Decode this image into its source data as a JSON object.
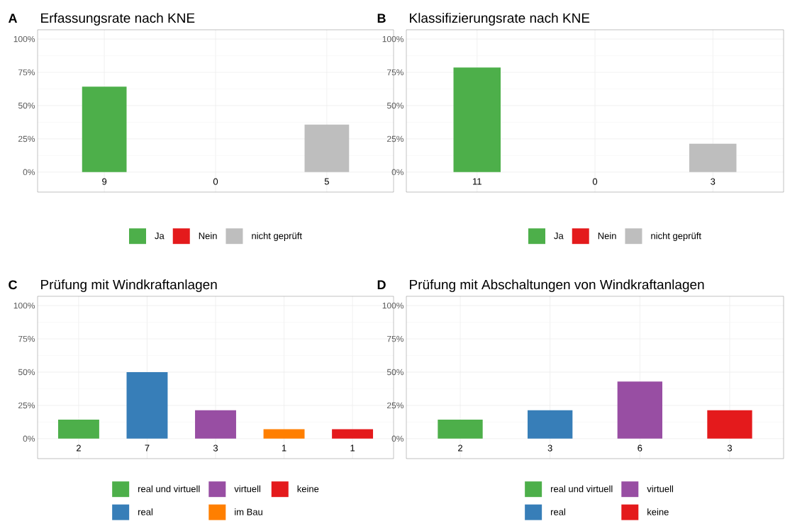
{
  "chart_data": [
    {
      "type": "bar",
      "title": "Erfassungsrate nach KNE",
      "annotations": [
        "A"
      ],
      "categories": [
        "9",
        "0",
        "5"
      ],
      "series": [
        {
          "name": "Ja",
          "color": "#4daf4a",
          "values": [
            64.3,
            null,
            null
          ]
        },
        {
          "name": "Nein",
          "color": "#e41a1c",
          "values": [
            null,
            0,
            null
          ]
        },
        {
          "name": "nicht geprüft",
          "color": "#bebebe",
          "values": [
            null,
            null,
            35.7
          ]
        }
      ],
      "ylim": [
        -15,
        107
      ],
      "yticks": [
        {
          "value": 0,
          "label": "0%"
        },
        {
          "value": 25,
          "label": "25%"
        },
        {
          "value": 50,
          "label": "50%"
        },
        {
          "value": 75,
          "label": "75%"
        },
        {
          "value": 100,
          "label": "100%"
        }
      ],
      "grid": true,
      "legend": "bottom"
    },
    {
      "type": "bar",
      "title": "Klassifizierungsrate nach KNE",
      "annotations": [
        "B"
      ],
      "categories": [
        "11",
        "0",
        "3"
      ],
      "series": [
        {
          "name": "Ja",
          "color": "#4daf4a",
          "values": [
            78.6,
            null,
            null
          ]
        },
        {
          "name": "Nein",
          "color": "#e41a1c",
          "values": [
            null,
            0,
            null
          ]
        },
        {
          "name": "nicht geprüft",
          "color": "#bebebe",
          "values": [
            null,
            null,
            21.4
          ]
        }
      ],
      "ylim": [
        -15,
        107
      ],
      "yticks": [
        {
          "value": 0,
          "label": "0%"
        },
        {
          "value": 25,
          "label": "25%"
        },
        {
          "value": 50,
          "label": "50%"
        },
        {
          "value": 75,
          "label": "75%"
        },
        {
          "value": 100,
          "label": "100%"
        }
      ],
      "grid": true,
      "legend": "bottom"
    },
    {
      "type": "bar",
      "title": "Prüfung mit Windkraftanlagen",
      "annotations": [
        "C"
      ],
      "categories": [
        "2",
        "7",
        "3",
        "1",
        "1"
      ],
      "series": [
        {
          "name": "real und virtuell",
          "color": "#4daf4a",
          "values": [
            14.3,
            null,
            null,
            null,
            null
          ]
        },
        {
          "name": "real",
          "color": "#377eb8",
          "values": [
            null,
            50,
            null,
            null,
            null
          ]
        },
        {
          "name": "virtuell",
          "color": "#984ea3",
          "values": [
            null,
            null,
            21.4,
            null,
            null
          ]
        },
        {
          "name": "im Bau",
          "color": "#ff7f00",
          "values": [
            null,
            null,
            null,
            7.1,
            null
          ]
        },
        {
          "name": "keine",
          "color": "#e41a1c",
          "values": [
            null,
            null,
            null,
            null,
            7.1
          ]
        }
      ],
      "ylim": [
        -15,
        107
      ],
      "yticks": [
        {
          "value": 0,
          "label": "0%"
        },
        {
          "value": 25,
          "label": "25%"
        },
        {
          "value": 50,
          "label": "50%"
        },
        {
          "value": 75,
          "label": "75%"
        },
        {
          "value": 100,
          "label": "100%"
        }
      ],
      "grid": true,
      "legend": "bottom"
    },
    {
      "type": "bar",
      "title": "Prüfung mit Abschaltungen von Windkraftanlagen",
      "annotations": [
        "D"
      ],
      "categories": [
        "2",
        "3",
        "6",
        "3"
      ],
      "series": [
        {
          "name": "real und virtuell",
          "color": "#4daf4a",
          "values": [
            14.3,
            null,
            null,
            null
          ]
        },
        {
          "name": "real",
          "color": "#377eb8",
          "values": [
            null,
            21.4,
            null,
            null
          ]
        },
        {
          "name": "virtuell",
          "color": "#984ea3",
          "values": [
            null,
            null,
            42.9,
            null
          ]
        },
        {
          "name": "keine",
          "color": "#e41a1c",
          "values": [
            null,
            null,
            null,
            21.4
          ]
        }
      ],
      "ylim": [
        -15,
        107
      ],
      "yticks": [
        {
          "value": 0,
          "label": "0%"
        },
        {
          "value": 25,
          "label": "25%"
        },
        {
          "value": 50,
          "label": "50%"
        },
        {
          "value": 75,
          "label": "75%"
        },
        {
          "value": 100,
          "label": "100%"
        }
      ],
      "grid": true,
      "legend": "bottom"
    }
  ]
}
